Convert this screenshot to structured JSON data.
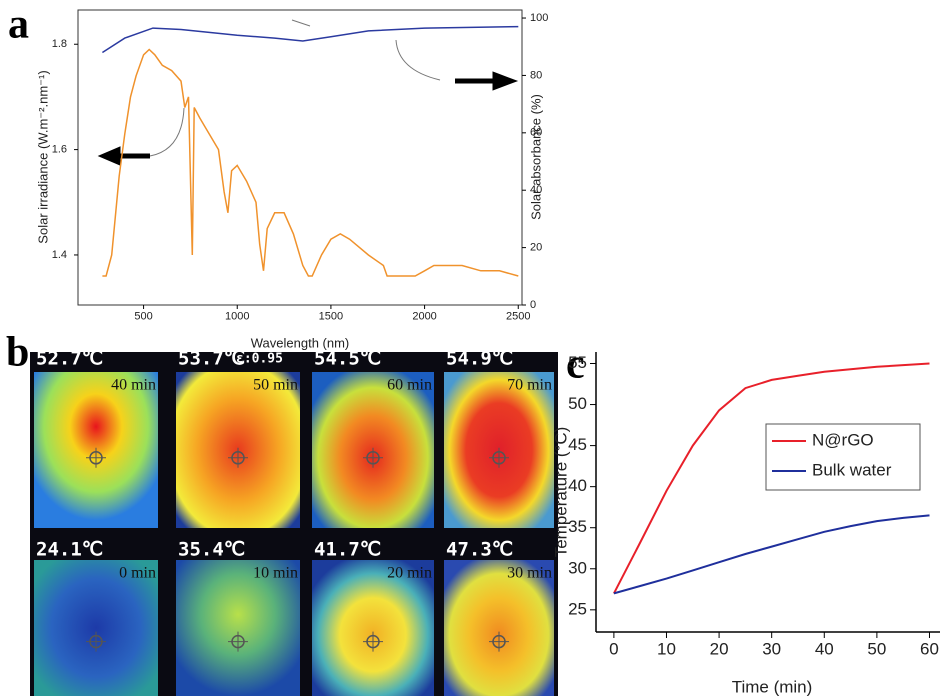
{
  "chart_data": [
    {
      "type": "line",
      "label": "a",
      "xlabel": "Wavelength (nm)",
      "ylabel": "Solar irradiance (W.m⁻².nm⁻¹)",
      "y2label": "Solar absorbance (%)",
      "xlim": [
        150,
        2520
      ],
      "xticks": [
        500,
        1000,
        1500,
        2000,
        2500
      ],
      "ylim": [
        1.305,
        1.865
      ],
      "yticks": [
        1.4,
        1.6,
        1.8
      ],
      "y2lim": [
        0,
        102.8
      ],
      "y2ticks": [
        0,
        20,
        40,
        60,
        80,
        100
      ],
      "series": [
        {
          "color": "#f0922c",
          "x": [
            280,
            300,
            330,
            370,
            400,
            430,
            460,
            500,
            530,
            560,
            600,
            650,
            700,
            720,
            740,
            760,
            770,
            800,
            850,
            900,
            930,
            950,
            970,
            1000,
            1050,
            1100,
            1120,
            1140,
            1160,
            1200,
            1250,
            1300,
            1350,
            1380,
            1400,
            1450,
            1500,
            1550,
            1600,
            1700,
            1780,
            1800,
            1900,
            1950,
            2000,
            2050,
            2100,
            2200,
            2300,
            2400,
            2500
          ],
          "values": [
            1.36,
            1.36,
            1.4,
            1.55,
            1.63,
            1.7,
            1.74,
            1.78,
            1.79,
            1.78,
            1.76,
            1.75,
            1.73,
            1.68,
            1.7,
            1.4,
            1.68,
            1.66,
            1.63,
            1.6,
            1.52,
            1.48,
            1.56,
            1.57,
            1.54,
            1.5,
            1.42,
            1.37,
            1.45,
            1.48,
            1.48,
            1.44,
            1.38,
            1.36,
            1.36,
            1.4,
            1.43,
            1.44,
            1.43,
            1.4,
            1.38,
            1.36,
            1.36,
            1.36,
            1.37,
            1.38,
            1.38,
            1.38,
            1.37,
            1.37,
            1.36
          ]
        },
        {
          "color": "#2b3aa0",
          "axis": "y2",
          "x": [
            280,
            400,
            550,
            700,
            1000,
            1200,
            1350,
            1500,
            1700,
            2000,
            2500
          ],
          "values": [
            88,
            93,
            96.5,
            96,
            94,
            93,
            92,
            93.5,
            95.5,
            96.5,
            97
          ]
        }
      ]
    },
    {
      "type": "line",
      "label": "c",
      "xlabel": "Time (min)",
      "ylabel": "Temperature (°C)",
      "xlim": [
        -3.4,
        62
      ],
      "xticks": [
        0,
        10,
        20,
        30,
        40,
        50,
        60
      ],
      "ylim": [
        22.3,
        56.4
      ],
      "yticks": [
        25,
        30,
        35,
        40,
        45,
        50,
        55
      ],
      "x": [
        0,
        5,
        10,
        15,
        20,
        25,
        30,
        35,
        40,
        45,
        50,
        55,
        60
      ],
      "series": [
        {
          "name": "N@rGO",
          "color": "#e8202a",
          "values": [
            27,
            33.2,
            39.5,
            45,
            49.3,
            52,
            53,
            53.5,
            54,
            54.3,
            54.6,
            54.8,
            55
          ]
        },
        {
          "name": "Bulk water",
          "color": "#1f2f9c",
          "values": [
            27,
            27.9,
            28.8,
            29.8,
            30.8,
            31.8,
            32.7,
            33.6,
            34.5,
            35.2,
            35.8,
            36.2,
            36.5
          ]
        }
      ]
    }
  ],
  "thermal_images": {
    "label": "b",
    "emissivity": "ε:0.95",
    "panels": [
      {
        "temperature": "52.7℃",
        "time": "40 min"
      },
      {
        "temperature": "53.7℃",
        "time": "50 min"
      },
      {
        "temperature": "54.5℃",
        "time": "60 min"
      },
      {
        "temperature": "54.9℃",
        "time": "70  min"
      },
      {
        "temperature": "24.1℃",
        "time": "0 min"
      },
      {
        "temperature": "35.4℃",
        "time": "10 min"
      },
      {
        "temperature": "41.7℃",
        "time": "20 min"
      },
      {
        "temperature": "47.3℃",
        "time": "30 min"
      }
    ]
  }
}
